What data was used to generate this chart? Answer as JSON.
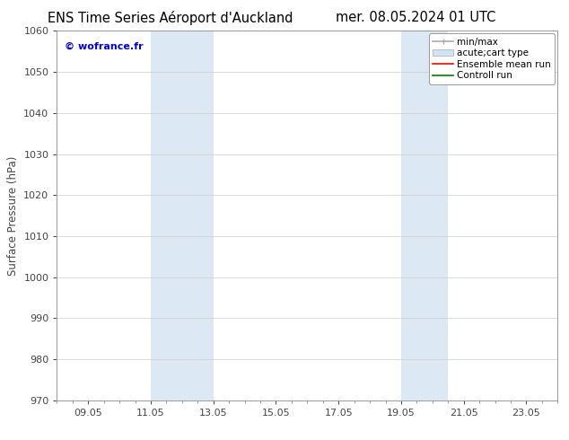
{
  "title_left": "ENS Time Series Aéroport d'Auckland",
  "title_right": "mer. 08.05.2024 01 UTC",
  "ylabel": "Surface Pressure (hPa)",
  "ylim": [
    970,
    1060
  ],
  "yticks": [
    970,
    980,
    990,
    1000,
    1010,
    1020,
    1030,
    1040,
    1050,
    1060
  ],
  "xlim": [
    0,
    16
  ],
  "xtick_labels": [
    "09.05",
    "11.05",
    "13.05",
    "15.05",
    "17.05",
    "19.05",
    "21.05",
    "23.05"
  ],
  "xtick_positions": [
    1,
    3,
    5,
    7,
    9,
    11,
    13,
    15
  ],
  "shaded_regions": [
    {
      "xstart": 3,
      "xend": 5,
      "color": "#dce9f5"
    },
    {
      "xstart": 11,
      "xend": 12.5,
      "color": "#dce9f5"
    }
  ],
  "watermark": "© wofrance.fr",
  "watermark_color": "#0000cc",
  "background_color": "#ffffff",
  "axes_bg_color": "#ffffff",
  "grid_color": "#cccccc",
  "tick_color": "#444444",
  "spine_color": "#999999",
  "font_size_title": 10.5,
  "font_size_axis": 8.5,
  "font_size_ticks": 8,
  "font_size_legend": 7.5,
  "font_size_watermark": 8,
  "legend_minmax_color": "#aaaaaa",
  "legend_carttype_color": "#d0e4f5",
  "legend_ensemble_color": "red",
  "legend_control_color": "green"
}
